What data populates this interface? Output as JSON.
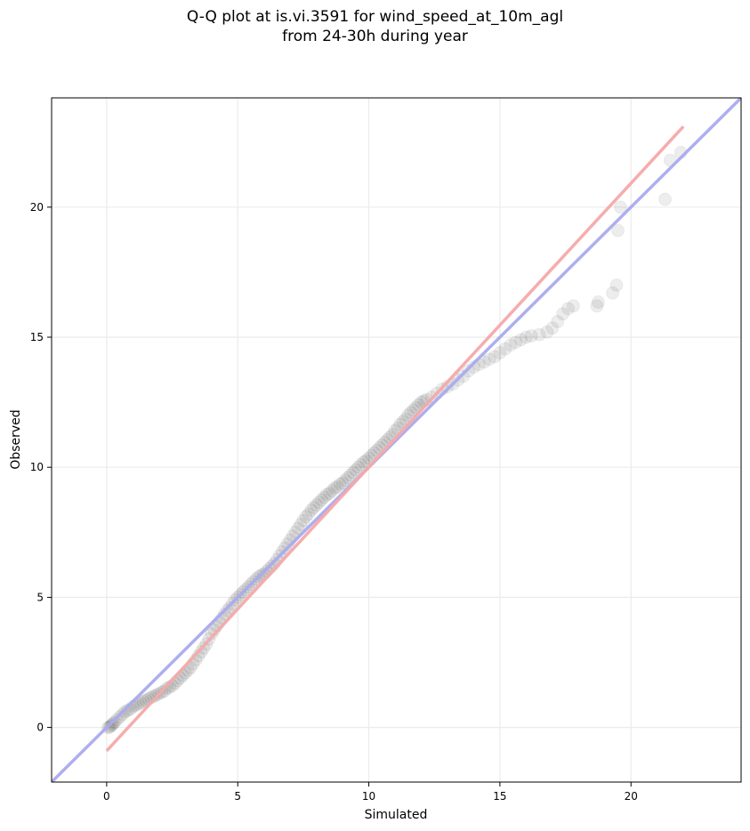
{
  "chart_data": {
    "type": "scatter",
    "title_line1": "Q-Q plot at is.vi.3591 for wind_speed_at_10m_agl",
    "title_line2": "from 24-30h during year",
    "xlabel": "Simulated",
    "ylabel": "Observed",
    "xlim": [
      -2.1,
      24.2
    ],
    "ylim": [
      -2.1,
      24.2
    ],
    "xticks": [
      0,
      5,
      10,
      15,
      20
    ],
    "yticks": [
      0,
      5,
      10,
      15,
      20
    ],
    "grid": true,
    "reference_lines": [
      {
        "kind": "identity",
        "color": "#aaaaee",
        "from": [
          -2.1,
          -2.1
        ],
        "to": [
          24.2,
          24.2
        ]
      },
      {
        "kind": "fit",
        "color": "#f4a9a9",
        "from": [
          0.0,
          -0.9
        ],
        "to": [
          22.0,
          23.1
        ]
      }
    ],
    "points": [
      [
        0.05,
        0.0
      ],
      [
        0.1,
        0.0
      ],
      [
        0.15,
        0.05
      ],
      [
        0.2,
        0.1
      ],
      [
        0.25,
        0.15
      ],
      [
        0.3,
        0.2
      ],
      [
        0.4,
        0.3
      ],
      [
        0.5,
        0.4
      ],
      [
        0.6,
        0.5
      ],
      [
        0.7,
        0.6
      ],
      [
        0.8,
        0.65
      ],
      [
        0.9,
        0.7
      ],
      [
        1.0,
        0.8
      ],
      [
        1.1,
        0.85
      ],
      [
        1.2,
        0.9
      ],
      [
        1.3,
        0.95
      ],
      [
        1.4,
        1.0
      ],
      [
        1.5,
        1.05
      ],
      [
        1.6,
        1.1
      ],
      [
        1.7,
        1.15
      ],
      [
        1.8,
        1.2
      ],
      [
        1.9,
        1.25
      ],
      [
        2.0,
        1.3
      ],
      [
        2.1,
        1.35
      ],
      [
        2.2,
        1.4
      ],
      [
        2.3,
        1.5
      ],
      [
        2.4,
        1.55
      ],
      [
        2.5,
        1.6
      ],
      [
        2.6,
        1.7
      ],
      [
        2.7,
        1.8
      ],
      [
        2.8,
        1.9
      ],
      [
        2.9,
        2.0
      ],
      [
        3.0,
        2.1
      ],
      [
        3.1,
        2.2
      ],
      [
        3.2,
        2.3
      ],
      [
        3.3,
        2.45
      ],
      [
        3.4,
        2.6
      ],
      [
        3.5,
        2.75
      ],
      [
        3.6,
        2.9
      ],
      [
        3.7,
        3.05
      ],
      [
        3.8,
        3.2
      ],
      [
        3.9,
        3.4
      ],
      [
        4.0,
        3.6
      ],
      [
        4.1,
        3.75
      ],
      [
        4.2,
        3.9
      ],
      [
        4.3,
        4.05
      ],
      [
        4.4,
        4.2
      ],
      [
        4.5,
        4.35
      ],
      [
        4.6,
        4.5
      ],
      [
        4.7,
        4.6
      ],
      [
        4.8,
        4.75
      ],
      [
        4.9,
        4.9
      ],
      [
        5.0,
        5.0
      ],
      [
        5.1,
        5.1
      ],
      [
        5.2,
        5.2
      ],
      [
        5.3,
        5.3
      ],
      [
        5.4,
        5.4
      ],
      [
        5.5,
        5.5
      ],
      [
        5.6,
        5.6
      ],
      [
        5.7,
        5.7
      ],
      [
        5.8,
        5.8
      ],
      [
        5.9,
        5.85
      ],
      [
        6.0,
        5.9
      ],
      [
        6.1,
        6.0
      ],
      [
        6.2,
        6.1
      ],
      [
        6.3,
        6.2
      ],
      [
        6.4,
        6.3
      ],
      [
        6.5,
        6.45
      ],
      [
        6.6,
        6.6
      ],
      [
        6.7,
        6.75
      ],
      [
        6.8,
        6.9
      ],
      [
        6.9,
        7.05
      ],
      [
        7.0,
        7.2
      ],
      [
        7.1,
        7.35
      ],
      [
        7.2,
        7.5
      ],
      [
        7.3,
        7.65
      ],
      [
        7.4,
        7.8
      ],
      [
        7.5,
        7.95
      ],
      [
        7.6,
        8.1
      ],
      [
        7.7,
        8.2
      ],
      [
        7.8,
        8.35
      ],
      [
        7.9,
        8.45
      ],
      [
        8.0,
        8.55
      ],
      [
        8.1,
        8.65
      ],
      [
        8.2,
        8.75
      ],
      [
        8.3,
        8.85
      ],
      [
        8.4,
        8.95
      ],
      [
        8.5,
        9.0
      ],
      [
        8.6,
        9.1
      ],
      [
        8.7,
        9.2
      ],
      [
        8.8,
        9.25
      ],
      [
        8.9,
        9.35
      ],
      [
        9.0,
        9.4
      ],
      [
        9.1,
        9.5
      ],
      [
        9.2,
        9.6
      ],
      [
        9.3,
        9.7
      ],
      [
        9.4,
        9.8
      ],
      [
        9.5,
        9.9
      ],
      [
        9.6,
        10.0
      ],
      [
        9.7,
        10.1
      ],
      [
        9.8,
        10.2
      ],
      [
        9.9,
        10.25
      ],
      [
        10.0,
        10.35
      ],
      [
        10.1,
        10.45
      ],
      [
        10.2,
        10.55
      ],
      [
        10.3,
        10.65
      ],
      [
        10.4,
        10.75
      ],
      [
        10.5,
        10.85
      ],
      [
        10.6,
        10.95
      ],
      [
        10.7,
        11.05
      ],
      [
        10.8,
        11.15
      ],
      [
        10.9,
        11.25
      ],
      [
        11.0,
        11.4
      ],
      [
        11.1,
        11.5
      ],
      [
        11.2,
        11.65
      ],
      [
        11.3,
        11.75
      ],
      [
        11.4,
        11.85
      ],
      [
        11.5,
        12.0
      ],
      [
        11.6,
        12.1
      ],
      [
        11.7,
        12.2
      ],
      [
        11.8,
        12.3
      ],
      [
        11.9,
        12.4
      ],
      [
        12.0,
        12.5
      ],
      [
        12.1,
        12.55
      ],
      [
        12.2,
        12.6
      ],
      [
        12.4,
        12.7
      ],
      [
        12.6,
        12.85
      ],
      [
        12.8,
        13.0
      ],
      [
        13.0,
        13.1
      ],
      [
        13.2,
        13.2
      ],
      [
        13.4,
        13.35
      ],
      [
        13.6,
        13.5
      ],
      [
        13.8,
        13.7
      ],
      [
        14.0,
        13.85
      ],
      [
        14.2,
        13.95
      ],
      [
        14.4,
        14.05
      ],
      [
        14.6,
        14.15
      ],
      [
        14.8,
        14.25
      ],
      [
        15.0,
        14.4
      ],
      [
        15.2,
        14.55
      ],
      [
        15.4,
        14.7
      ],
      [
        15.6,
        14.8
      ],
      [
        15.8,
        14.9
      ],
      [
        16.0,
        15.0
      ],
      [
        16.2,
        15.05
      ],
      [
        16.5,
        15.1
      ],
      [
        16.8,
        15.2
      ],
      [
        17.0,
        15.35
      ],
      [
        17.2,
        15.6
      ],
      [
        17.4,
        15.9
      ],
      [
        17.6,
        16.1
      ],
      [
        17.8,
        16.2
      ],
      [
        18.7,
        16.2
      ],
      [
        18.75,
        16.35
      ],
      [
        19.3,
        16.7
      ],
      [
        19.45,
        17.0
      ],
      [
        19.5,
        19.1
      ],
      [
        19.6,
        20.0
      ],
      [
        21.3,
        20.3
      ],
      [
        21.5,
        21.8
      ],
      [
        21.9,
        22.1
      ]
    ]
  }
}
